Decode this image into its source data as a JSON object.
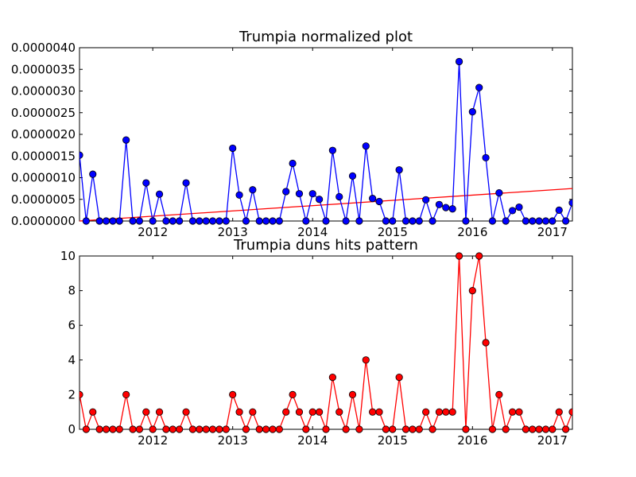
{
  "chart_data": [
    {
      "type": "line",
      "title": "Trumpia normalized plot",
      "xlabel": "",
      "ylabel": "",
      "ylim": [
        0,
        4e-06
      ],
      "y_ticks": [
        "0.0000000",
        "0.0000005",
        "0.0000010",
        "0.0000015",
        "0.0000020",
        "0.0000025",
        "0.0000030",
        "0.0000035",
        "0.0000040"
      ],
      "x_ticks": [
        "2012",
        "2013",
        "2014",
        "2015",
        "2016",
        "2017"
      ],
      "grid": false,
      "colors": {
        "series": "#0000ff",
        "trend": "#ff0000"
      },
      "x": [
        "2011-02",
        "2011-03",
        "2011-04",
        "2011-05",
        "2011-06",
        "2011-07",
        "2011-08",
        "2011-09",
        "2011-10",
        "2011-11",
        "2011-12",
        "2012-01",
        "2012-02",
        "2012-03",
        "2012-04",
        "2012-05",
        "2012-06",
        "2012-07",
        "2012-08",
        "2012-09",
        "2012-10",
        "2012-11",
        "2012-12",
        "2013-01",
        "2013-02",
        "2013-03",
        "2013-04",
        "2013-05",
        "2013-06",
        "2013-07",
        "2013-08",
        "2013-09",
        "2013-10",
        "2013-11",
        "2013-12",
        "2014-01",
        "2014-02",
        "2014-03",
        "2014-04",
        "2014-05",
        "2014-06",
        "2014-07",
        "2014-08",
        "2014-09",
        "2014-10",
        "2014-11",
        "2014-12",
        "2015-01",
        "2015-02",
        "2015-03",
        "2015-04",
        "2015-05",
        "2015-06",
        "2015-07",
        "2015-08",
        "2015-09",
        "2015-10",
        "2015-11",
        "2015-12",
        "2016-01",
        "2016-02",
        "2016-03",
        "2016-04",
        "2016-05",
        "2016-06",
        "2016-07",
        "2016-08",
        "2016-09",
        "2016-10",
        "2016-11",
        "2016-12",
        "2017-01",
        "2017-02",
        "2017-03",
        "2017-04"
      ],
      "series": [
        {
          "values": [
            1.52e-06,
            0,
            1.08e-06,
            0,
            0,
            0,
            0,
            1.87e-06,
            0,
            0,
            8.8e-07,
            0,
            6.2e-07,
            0,
            0,
            0,
            8.8e-07,
            0,
            0,
            0,
            0,
            0,
            0,
            1.68e-06,
            6e-07,
            0,
            7.2e-07,
            0,
            0,
            0,
            0,
            6.8e-07,
            1.33e-06,
            6.3e-07,
            0,
            6.3e-07,
            5e-07,
            0,
            1.63e-06,
            5.6e-07,
            0,
            1.04e-06,
            0,
            1.73e-06,
            5.2e-07,
            4.5e-07,
            0,
            0,
            1.18e-06,
            0,
            0,
            0,
            4.9e-07,
            0,
            3.8e-07,
            3.1e-07,
            2.8e-07,
            3.68e-06,
            0,
            2.52e-06,
            3.08e-06,
            1.46e-06,
            0,
            6.5e-07,
            0,
            2.4e-07,
            3.2e-07,
            0,
            0,
            0,
            0,
            0,
            2.5e-07,
            0,
            4.2e-07
          ]
        },
        {
          "type": "trend",
          "x": [
            "2011-02",
            "2017-04"
          ],
          "values": [
            0,
            7.5e-07
          ]
        }
      ]
    },
    {
      "type": "line",
      "title": "Trumpia duns hits pattern",
      "xlabel": "",
      "ylabel": "",
      "ylim": [
        0,
        10
      ],
      "y_ticks": [
        "0",
        "2",
        "4",
        "6",
        "8",
        "10"
      ],
      "x_ticks": [
        "2012",
        "2013",
        "2014",
        "2015",
        "2016",
        "2017"
      ],
      "grid": false,
      "colors": {
        "series": "#ff0000",
        "marker_edge": "#000000"
      },
      "x": [
        "2011-02",
        "2011-03",
        "2011-04",
        "2011-05",
        "2011-06",
        "2011-07",
        "2011-08",
        "2011-09",
        "2011-10",
        "2011-11",
        "2011-12",
        "2012-01",
        "2012-02",
        "2012-03",
        "2012-04",
        "2012-05",
        "2012-06",
        "2012-07",
        "2012-08",
        "2012-09",
        "2012-10",
        "2012-11",
        "2012-12",
        "2013-01",
        "2013-02",
        "2013-03",
        "2013-04",
        "2013-05",
        "2013-06",
        "2013-07",
        "2013-08",
        "2013-09",
        "2013-10",
        "2013-11",
        "2013-12",
        "2014-01",
        "2014-02",
        "2014-03",
        "2014-04",
        "2014-05",
        "2014-06",
        "2014-07",
        "2014-08",
        "2014-09",
        "2014-10",
        "2014-11",
        "2014-12",
        "2015-01",
        "2015-02",
        "2015-03",
        "2015-04",
        "2015-05",
        "2015-06",
        "2015-07",
        "2015-08",
        "2015-09",
        "2015-10",
        "2015-11",
        "2015-12",
        "2016-01",
        "2016-02",
        "2016-03",
        "2016-04",
        "2016-05",
        "2016-06",
        "2016-07",
        "2016-08",
        "2016-09",
        "2016-10",
        "2016-11",
        "2016-12",
        "2017-01",
        "2017-02",
        "2017-03",
        "2017-04"
      ],
      "series": [
        {
          "values": [
            2,
            0,
            1,
            0,
            0,
            0,
            0,
            2,
            0,
            0,
            1,
            0,
            1,
            0,
            0,
            0,
            1,
            0,
            0,
            0,
            0,
            0,
            0,
            2,
            1,
            0,
            1,
            0,
            0,
            0,
            0,
            1,
            2,
            1,
            0,
            1,
            1,
            0,
            3,
            1,
            0,
            2,
            0,
            4,
            1,
            1,
            0,
            0,
            3,
            0,
            0,
            0,
            1,
            0,
            1,
            1,
            1,
            10,
            0,
            8,
            10,
            5,
            0,
            2,
            0,
            1,
            1,
            0,
            0,
            0,
            0,
            0,
            1,
            0,
            1
          ]
        }
      ]
    }
  ]
}
